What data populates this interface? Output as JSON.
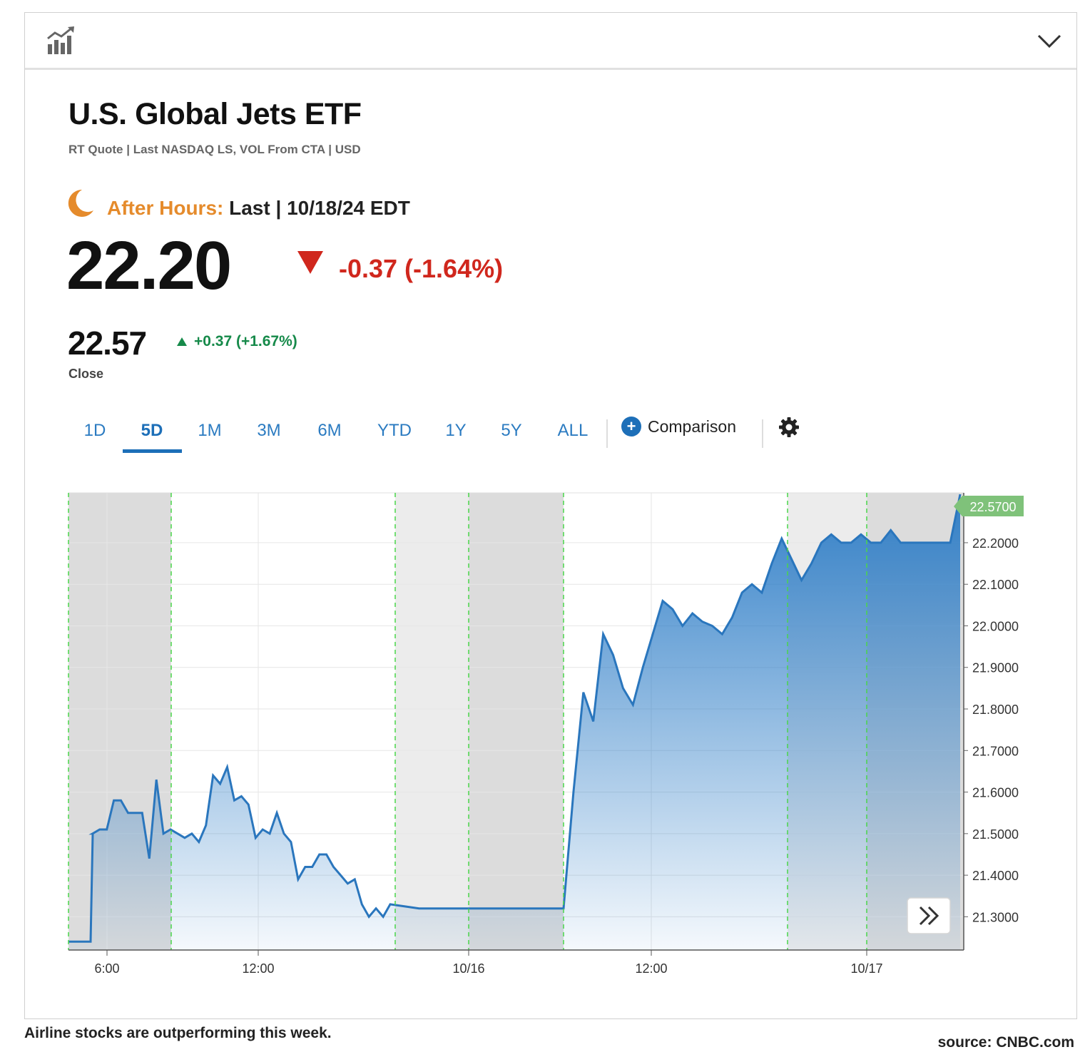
{
  "header": {
    "chart_icon": "bar-chart-trend-icon",
    "collapse_icon": "chevron-down-icon"
  },
  "security": {
    "name": "U.S. Global Jets ETF",
    "quote_info": "RT Quote | Last NASDAQ LS, VOL From CTA | USD"
  },
  "after_hours": {
    "icon": "moon-icon",
    "label": "After Hours:",
    "detail": "Last | 10/18/24 EDT",
    "price": "22.20",
    "change": "-0.37 (-1.64%)",
    "color": "#d0271d"
  },
  "close": {
    "price": "22.57",
    "change": "+0.37 (+1.67%)",
    "label": "Close",
    "color": "#168a4a"
  },
  "tabs": {
    "items": [
      "1D",
      "5D",
      "1M",
      "3M",
      "6M",
      "YTD",
      "1Y",
      "5Y",
      "ALL"
    ],
    "active": "5D",
    "comparison_label": "Comparison",
    "settings_icon": "gear-icon"
  },
  "chart_data": {
    "type": "area",
    "ylim": [
      21.22,
      22.32
    ],
    "y_ticks": [
      "22.2000",
      "22.1000",
      "22.0000",
      "21.9000",
      "21.8000",
      "21.7000",
      "21.6000",
      "21.5000",
      "21.4000",
      "21.3000"
    ],
    "x_ticks": [
      "6:00",
      "12:00",
      "10/16",
      "12:00",
      "10/17"
    ],
    "last_value_label": "22.5700",
    "accent": "#2a7bc6",
    "shaded_regions": "pre/after-market sessions shaded grey",
    "series": [
      {
        "values": [
          21.24,
          21.24,
          21.5,
          21.5,
          21.51,
          21.51,
          21.58,
          21.58,
          21.55,
          21.55,
          21.55,
          21.44,
          21.63,
          21.5,
          21.51,
          21.5,
          21.49,
          21.5,
          21.48,
          21.52,
          21.64,
          21.62,
          21.66,
          21.58,
          21.59,
          21.57,
          21.49,
          21.51,
          21.5,
          21.55,
          21.5,
          21.48,
          21.39,
          21.42,
          21.42,
          21.45,
          21.45,
          21.42,
          21.4,
          21.38,
          21.39,
          21.33,
          21.3,
          21.32,
          21.3,
          21.33,
          21.32,
          21.32,
          21.32,
          21.32,
          21.32,
          21.32,
          21.6,
          21.84,
          21.77,
          21.98,
          21.93,
          21.85,
          21.81,
          21.9,
          21.98,
          22.06,
          22.04,
          22.0,
          22.03,
          22.01,
          22.0,
          21.98,
          22.02,
          22.08,
          22.1,
          22.08,
          22.15,
          22.21,
          22.16,
          22.11,
          22.15,
          22.2,
          22.22,
          22.2,
          22.2,
          22.22,
          22.2,
          22.2,
          22.23,
          22.2,
          22.2,
          22.2,
          22.2,
          22.2,
          22.2,
          22.57
        ]
      }
    ]
  },
  "chart_controls": {
    "scroll_icon": "double-chevron-right-icon"
  },
  "caption": "Airline stocks are outperforming this week.",
  "source": "source: CNBC.com"
}
